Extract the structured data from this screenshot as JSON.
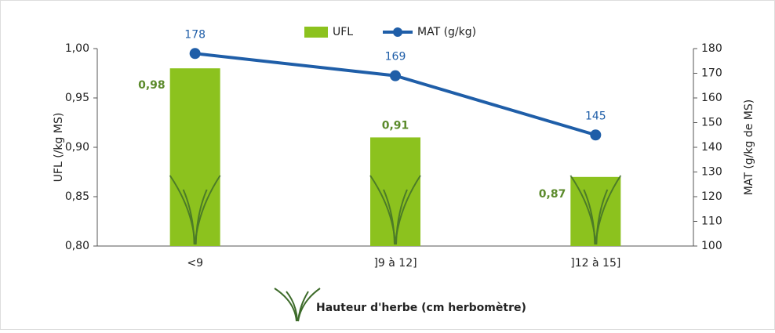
{
  "chart_data": {
    "type": "bar",
    "categories": [
      "<9",
      "]9 à 12]",
      "]12 à 15]"
    ],
    "series": [
      {
        "name": "UFL",
        "type": "bar",
        "color": "#8cc21e",
        "values": [
          0.98,
          0.91,
          0.87
        ],
        "value_labels": [
          "0,98",
          "0,91",
          "0,87"
        ]
      },
      {
        "name": "MAT (g/kg)",
        "type": "line",
        "axis": "y2",
        "color": "#1f5ea8",
        "values": [
          178,
          169,
          145
        ]
      }
    ],
    "ylabel": "UFL (/kg MS)",
    "y2label": "MAT (g/kg de MS)",
    "xlabel": "Hauteur d'herbe (cm herbomètre)",
    "ylim": [
      0.8,
      1.0
    ],
    "yticks": [
      {
        "value": 0.8,
        "label": "0,80"
      },
      {
        "value": 0.85,
        "label": "0,85"
      },
      {
        "value": 0.9,
        "label": "0,90"
      },
      {
        "value": 0.95,
        "label": "0,95"
      },
      {
        "value": 1.0,
        "label": "1,00"
      }
    ],
    "y2lim": [
      100,
      180
    ],
    "y2ticks": [
      100,
      110,
      120,
      130,
      140,
      150,
      160,
      170,
      180
    ],
    "legend": "top"
  }
}
